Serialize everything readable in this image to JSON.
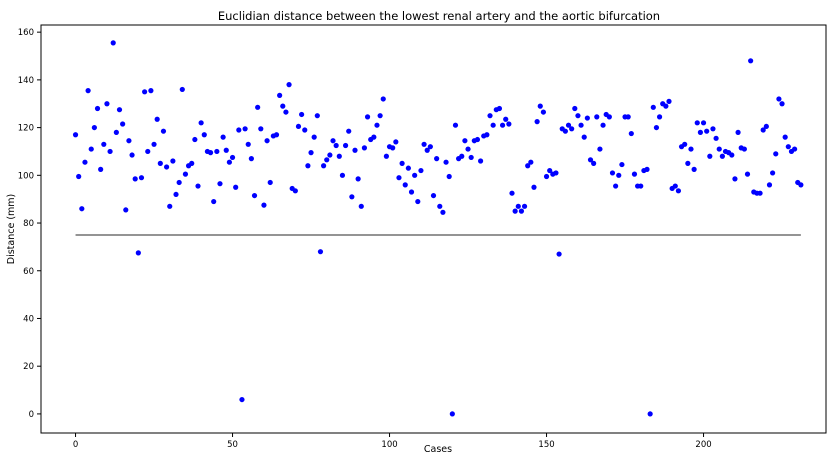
{
  "chart_data": {
    "type": "scatter",
    "title": "Euclidian distance between the lowest renal artery and the aortic bifurcation",
    "xlabel": "Cases",
    "ylabel": "Distance (mm)",
    "xlim": [
      -11,
      239
    ],
    "ylim": [
      -8,
      163
    ],
    "xticks": [
      0,
      50,
      100,
      150,
      200
    ],
    "yticks": [
      0,
      20,
      40,
      60,
      80,
      100,
      120,
      140,
      160
    ],
    "grid": false,
    "colors": {
      "points": "#0000ff",
      "reference_line": "#555555",
      "axes": "#000000"
    },
    "reference_line": {
      "x": [
        0,
        231
      ],
      "y": 75
    },
    "points": [
      [
        0,
        117
      ],
      [
        1,
        99.5
      ],
      [
        2,
        86
      ],
      [
        3,
        105.5
      ],
      [
        4,
        135.5
      ],
      [
        5,
        111
      ],
      [
        6,
        120
      ],
      [
        7,
        128
      ],
      [
        8,
        102.5
      ],
      [
        9,
        113
      ],
      [
        10,
        130
      ],
      [
        11,
        110
      ],
      [
        12,
        155.5
      ],
      [
        13,
        118
      ],
      [
        14,
        127.5
      ],
      [
        15,
        121.5
      ],
      [
        16,
        85.5
      ],
      [
        17,
        114.5
      ],
      [
        18,
        108.5
      ],
      [
        19,
        98.5
      ],
      [
        20,
        67.5
      ],
      [
        21,
        99
      ],
      [
        22,
        135
      ],
      [
        23,
        110
      ],
      [
        24,
        135.5
      ],
      [
        25,
        113
      ],
      [
        26,
        123.5
      ],
      [
        27,
        105
      ],
      [
        28,
        118.5
      ],
      [
        29,
        103.5
      ],
      [
        30,
        87
      ],
      [
        31,
        106
      ],
      [
        32,
        92
      ],
      [
        33,
        97
      ],
      [
        34,
        136
      ],
      [
        35,
        100.5
      ],
      [
        36,
        104
      ],
      [
        37,
        105
      ],
      [
        38,
        115
      ],
      [
        39,
        95.5
      ],
      [
        40,
        122
      ],
      [
        41,
        117
      ],
      [
        42,
        110
      ],
      [
        43,
        109.5
      ],
      [
        44,
        89
      ],
      [
        45,
        110
      ],
      [
        46,
        96.5
      ],
      [
        47,
        116
      ],
      [
        48,
        110.5
      ],
      [
        49,
        105.5
      ],
      [
        50,
        107.5
      ],
      [
        51,
        95
      ],
      [
        52,
        119
      ],
      [
        53,
        6
      ],
      [
        54,
        119.5
      ],
      [
        55,
        113
      ],
      [
        56,
        107
      ],
      [
        57,
        91.5
      ],
      [
        58,
        128.5
      ],
      [
        59,
        119.5
      ],
      [
        60,
        87.5
      ],
      [
        61,
        114.5
      ],
      [
        62,
        97
      ],
      [
        63,
        116.5
      ],
      [
        64,
        117
      ],
      [
        65,
        133.5
      ],
      [
        66,
        129
      ],
      [
        67,
        126.5
      ],
      [
        68,
        138
      ],
      [
        69,
        94.5
      ],
      [
        70,
        93.5
      ],
      [
        71,
        120.5
      ],
      [
        72,
        125.5
      ],
      [
        73,
        119
      ],
      [
        74,
        104
      ],
      [
        75,
        109.5
      ],
      [
        76,
        116
      ],
      [
        77,
        125
      ],
      [
        78,
        68
      ],
      [
        79,
        104
      ],
      [
        80,
        106.5
      ],
      [
        81,
        108.5
      ],
      [
        82,
        114.5
      ],
      [
        83,
        112.5
      ],
      [
        84,
        108
      ],
      [
        85,
        100
      ],
      [
        86,
        112.5
      ],
      [
        87,
        118.5
      ],
      [
        88,
        91
      ],
      [
        89,
        110.5
      ],
      [
        90,
        98.5
      ],
      [
        91,
        87
      ],
      [
        92,
        111.5
      ],
      [
        93,
        124.5
      ],
      [
        94,
        115
      ],
      [
        95,
        116
      ],
      [
        96,
        121
      ],
      [
        97,
        125
      ],
      [
        98,
        132
      ],
      [
        99,
        108
      ],
      [
        100,
        112
      ],
      [
        101,
        111.5
      ],
      [
        102,
        114
      ],
      [
        103,
        99
      ],
      [
        104,
        105
      ],
      [
        105,
        96
      ],
      [
        106,
        103
      ],
      [
        107,
        93
      ],
      [
        108,
        100
      ],
      [
        109,
        89
      ],
      [
        110,
        102
      ],
      [
        111,
        113
      ],
      [
        112,
        110.5
      ],
      [
        113,
        112
      ],
      [
        114,
        91.5
      ],
      [
        115,
        107
      ],
      [
        116,
        87
      ],
      [
        117,
        84.5
      ],
      [
        118,
        105.5
      ],
      [
        119,
        99.5
      ],
      [
        120,
        0
      ],
      [
        121,
        121
      ],
      [
        122,
        107
      ],
      [
        123,
        108
      ],
      [
        124,
        114.5
      ],
      [
        125,
        111
      ],
      [
        126,
        107.5
      ],
      [
        127,
        114.5
      ],
      [
        128,
        115
      ],
      [
        129,
        106
      ],
      [
        130,
        116.5
      ],
      [
        131,
        117
      ],
      [
        132,
        125
      ],
      [
        133,
        121
      ],
      [
        134,
        127.5
      ],
      [
        135,
        128
      ],
      [
        136,
        121
      ],
      [
        137,
        123.5
      ],
      [
        138,
        121.5
      ],
      [
        139,
        92.5
      ],
      [
        140,
        85
      ],
      [
        141,
        87
      ],
      [
        142,
        85
      ],
      [
        143,
        87
      ],
      [
        144,
        104
      ],
      [
        145,
        105.5
      ],
      [
        146,
        95
      ],
      [
        147,
        122.5
      ],
      [
        148,
        129
      ],
      [
        149,
        126.5
      ],
      [
        150,
        99.5
      ],
      [
        151,
        102
      ],
      [
        152,
        100.5
      ],
      [
        153,
        101
      ],
      [
        154,
        67
      ],
      [
        155,
        119.5
      ],
      [
        156,
        118.5
      ],
      [
        157,
        121
      ],
      [
        158,
        119.5
      ],
      [
        159,
        128
      ],
      [
        160,
        125
      ],
      [
        161,
        121
      ],
      [
        162,
        116
      ],
      [
        163,
        124
      ],
      [
        164,
        106.5
      ],
      [
        165,
        105
      ],
      [
        166,
        124.5
      ],
      [
        167,
        111
      ],
      [
        168,
        121
      ],
      [
        169,
        125.5
      ],
      [
        170,
        124.5
      ],
      [
        171,
        101
      ],
      [
        172,
        95.5
      ],
      [
        173,
        100
      ],
      [
        174,
        104.5
      ],
      [
        175,
        124.5
      ],
      [
        176,
        124.5
      ],
      [
        177,
        117.5
      ],
      [
        178,
        100.5
      ],
      [
        179,
        95.5
      ],
      [
        180,
        95.5
      ],
      [
        181,
        102
      ],
      [
        182,
        102.5
      ],
      [
        183,
        0
      ],
      [
        184,
        128.5
      ],
      [
        185,
        120
      ],
      [
        186,
        124.5
      ],
      [
        187,
        130
      ],
      [
        188,
        129
      ],
      [
        189,
        131
      ],
      [
        190,
        94.5
      ],
      [
        191,
        95.5
      ],
      [
        192,
        93.5
      ],
      [
        193,
        112
      ],
      [
        194,
        113
      ],
      [
        195,
        105
      ],
      [
        196,
        111
      ],
      [
        197,
        102.5
      ],
      [
        198,
        122
      ],
      [
        199,
        118
      ],
      [
        200,
        122
      ],
      [
        201,
        118.5
      ],
      [
        202,
        108
      ],
      [
        203,
        119.5
      ],
      [
        204,
        115.5
      ],
      [
        205,
        111
      ],
      [
        206,
        108
      ],
      [
        207,
        110
      ],
      [
        208,
        109.5
      ],
      [
        209,
        108.5
      ],
      [
        210,
        98.5
      ],
      [
        211,
        118
      ],
      [
        212,
        111.5
      ],
      [
        213,
        111
      ],
      [
        214,
        100.5
      ],
      [
        215,
        148
      ],
      [
        216,
        93
      ],
      [
        217,
        92.5
      ],
      [
        218,
        92.5
      ],
      [
        219,
        119
      ],
      [
        220,
        120.5
      ],
      [
        221,
        96
      ],
      [
        222,
        101
      ],
      [
        223,
        109
      ],
      [
        224,
        132
      ],
      [
        225,
        130
      ],
      [
        226,
        116
      ],
      [
        227,
        112
      ],
      [
        228,
        110
      ],
      [
        229,
        111
      ],
      [
        230,
        97
      ],
      [
        231,
        96
      ]
    ]
  }
}
